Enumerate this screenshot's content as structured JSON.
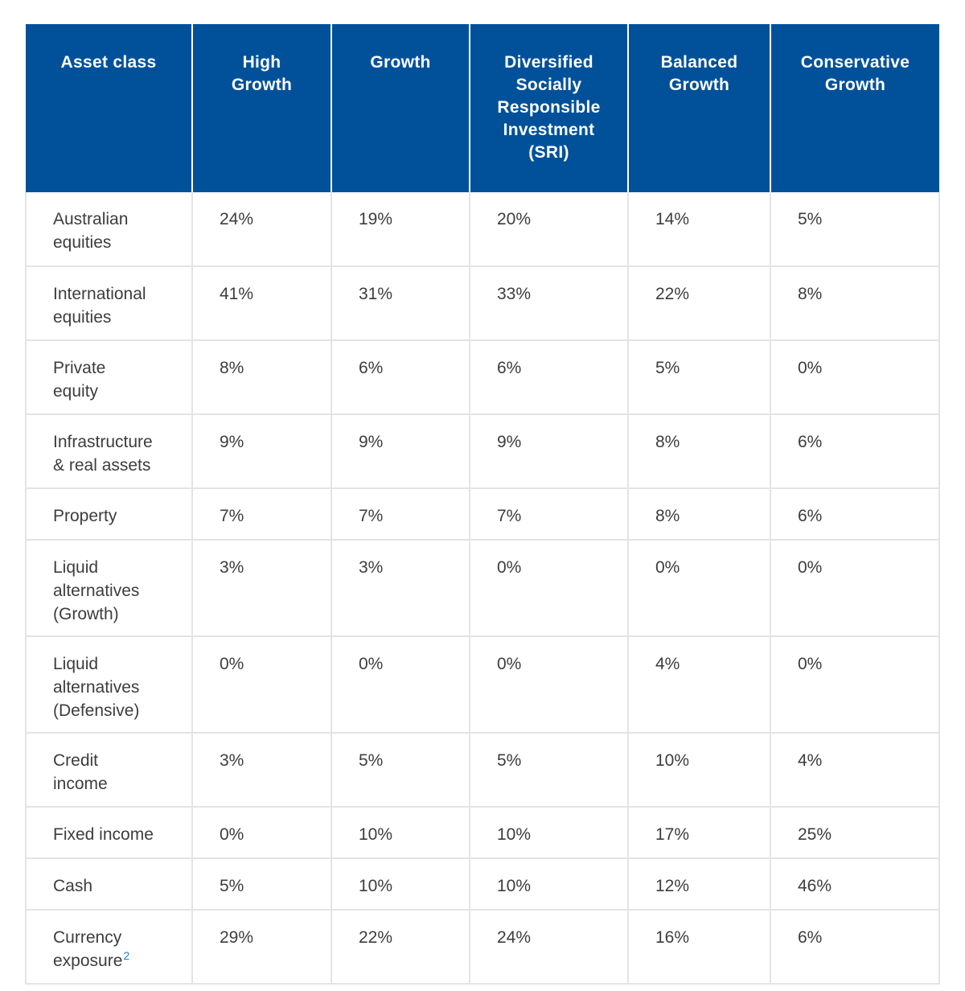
{
  "table": {
    "headers": [
      "Asset class",
      "High\nGrowth",
      "Growth",
      "Diversified\nSocially\nResponsible\nInvestment\n(SRI)",
      "Balanced\nGrowth",
      "Conservative\nGrowth"
    ],
    "rows": [
      {
        "label": "Australian\nequities",
        "values": [
          "24%",
          "19%",
          "20%",
          "14%",
          "5%"
        ]
      },
      {
        "label": "International\nequities",
        "values": [
          "41%",
          "31%",
          "33%",
          "22%",
          "8%"
        ]
      },
      {
        "label": "Private\nequity",
        "values": [
          "8%",
          "6%",
          "6%",
          "5%",
          "0%"
        ]
      },
      {
        "label": "Infrastructure\n& real assets",
        "values": [
          "9%",
          "9%",
          "9%",
          "8%",
          "6%"
        ]
      },
      {
        "label": "Property",
        "values": [
          "7%",
          "7%",
          "7%",
          "8%",
          "6%"
        ]
      },
      {
        "label": "Liquid\nalternatives\n(Growth)",
        "values": [
          "3%",
          "3%",
          "0%",
          "0%",
          "0%"
        ]
      },
      {
        "label": "Liquid\nalternatives\n(Defensive)",
        "values": [
          "0%",
          "0%",
          "0%",
          "4%",
          "0%"
        ]
      },
      {
        "label": "Credit\nincome",
        "values": [
          "3%",
          "5%",
          "5%",
          "10%",
          "4%"
        ]
      },
      {
        "label": "Fixed income",
        "values": [
          "0%",
          "10%",
          "10%",
          "17%",
          "25%"
        ]
      },
      {
        "label": "Cash",
        "values": [
          "5%",
          "10%",
          "10%",
          "12%",
          "46%"
        ]
      },
      {
        "label": "Currency\nexposure",
        "footnote": "2",
        "values": [
          "29%",
          "22%",
          "24%",
          "16%",
          "6%"
        ]
      }
    ]
  },
  "colors": {
    "header_bg": "#00519a",
    "header_text": "#ffffff",
    "footnote": "#1a7fd1",
    "grid": "#e4e4e4"
  }
}
